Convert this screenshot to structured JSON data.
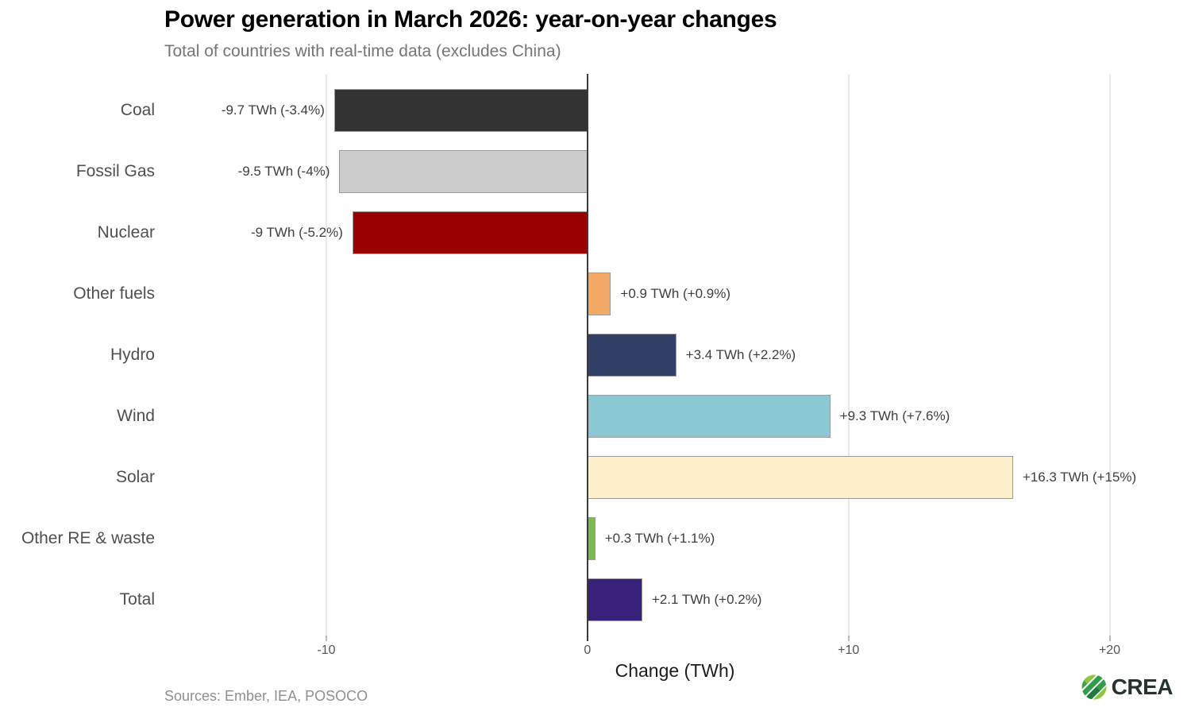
{
  "header": {
    "title": "Power generation in March 2026: year-on-year changes",
    "subtitle": "Total of countries with real-time data (excludes China)"
  },
  "chart_data": {
    "type": "bar",
    "orientation": "horizontal",
    "title": "Power generation in March 2026: year-on-year changes",
    "subtitle": "Total of countries with real-time data (excludes China)",
    "categories": [
      "Coal",
      "Fossil Gas",
      "Nuclear",
      "Other fuels",
      "Hydro",
      "Wind",
      "Solar",
      "Other RE & waste",
      "Total"
    ],
    "values": [
      -9.7,
      -9.5,
      -9,
      0.9,
      3.4,
      9.3,
      16.3,
      0.3,
      2.1
    ],
    "value_labels": [
      "-9.7 TWh (-3.4%)",
      "-9.5 TWh (-4%)",
      "-9 TWh (-5.2%)",
      "+0.9 TWh (+0.9%)",
      "+3.4 TWh (+2.2%)",
      "+9.3 TWh (+7.6%)",
      "+16.3 TWh (+15%)",
      "+0.3 TWh (+1.1%)",
      "+2.1 TWh (+0.2%)"
    ],
    "bar_colors": [
      "#333333",
      "#cccccc",
      "#990000",
      "#F2A965",
      "#343F68",
      "#8CC8D3",
      "#FCF0CC",
      "#7CB950",
      "#37217A"
    ],
    "bar_border_color": "#9b9b9b",
    "xlabel": "Change (TWh)",
    "unit": "TWh",
    "x_ticks": [
      {
        "value": -10,
        "label": "-10"
      },
      {
        "value": 0,
        "label": "0"
      },
      {
        "value": 10,
        "label": "+10"
      },
      {
        "value": 20,
        "label": "+20"
      }
    ],
    "xlim": [
      -15.2,
      21.9
    ],
    "grid": "vertical gridlines only",
    "gridline_color": "#e8e8e8",
    "zero_line_color": "#3a3a3a",
    "legend": "none"
  },
  "footer": {
    "sources": "Sources: Ember, IEA, POSOCO",
    "logo_text": "CREA",
    "logo_icon": "crea-circle-stripes-icon",
    "logo_colors": {
      "light_green": "#8CC63F",
      "mid_green": "#2F9E48",
      "dark_green": "#1D7B3B",
      "text": "#26332E"
    }
  }
}
